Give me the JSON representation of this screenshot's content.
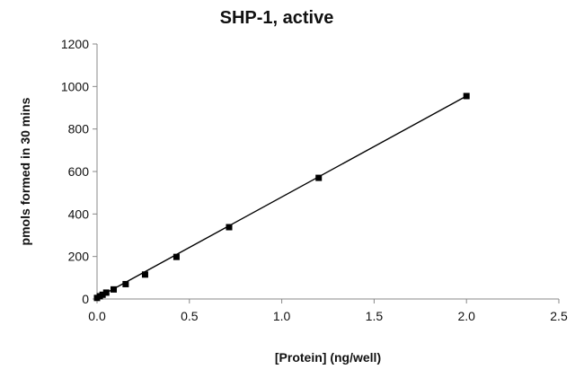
{
  "chart_data": {
    "type": "scatter",
    "title": "SHP-1, active",
    "xlabel": "[Protein] (ng/well)",
    "ylabel": "pmols formed in 30 mins",
    "xlim": [
      0,
      2.5
    ],
    "ylim": [
      0,
      1200
    ],
    "x_ticks": [
      "0.0",
      "0.5",
      "1.0",
      "1.5",
      "2.0",
      "2.5"
    ],
    "y_ticks": [
      "0",
      "200",
      "400",
      "600",
      "800",
      "1000",
      "1200"
    ],
    "grid": false,
    "legend": "none",
    "series": [
      {
        "name": "SHP-1, active",
        "marker": "square",
        "line": "linear-fit",
        "x": [
          0.0,
          0.015,
          0.03,
          0.05,
          0.09,
          0.155,
          0.26,
          0.43,
          0.715,
          1.2,
          2.0
        ],
        "y": [
          5,
          13,
          20,
          30,
          45,
          70,
          115,
          198,
          338,
          570,
          955
        ]
      }
    ],
    "fit_line": {
      "x": [
        0.0,
        2.0
      ],
      "y": [
        5,
        955
      ]
    },
    "colors": {
      "marker": "#000000",
      "line": "#000000",
      "axis": "#888888"
    }
  }
}
